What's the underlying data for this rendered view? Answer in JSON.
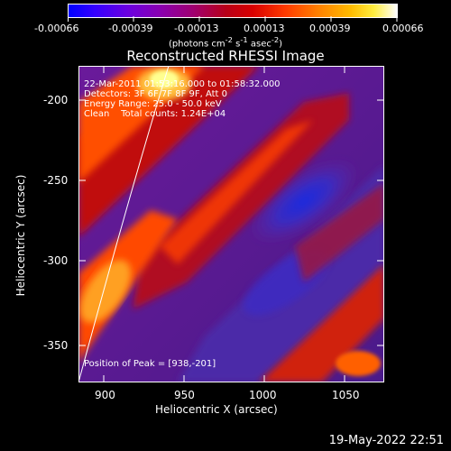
{
  "colorbar": {
    "ticks": [
      "-0.00066",
      "-0.00039",
      "-0.00013",
      "0.00013",
      "0.00039",
      "0.00066"
    ],
    "units_html": "(photons cm<sup>-2</sup> s<sup>-1</sup> asec<sup>-2</sup>)",
    "colors": [
      "#0000ff",
      "#3a00ff",
      "#7a00c8",
      "#a000a0",
      "#b00030",
      "#d00000",
      "#ff3000",
      "#ff8000",
      "#ffc000",
      "#ffff60",
      "#ffffff"
    ]
  },
  "title": "Reconstructed RHESSI Image",
  "info": {
    "line1": "22-Mar-2011 01:53:16.000 to 01:58:32.000",
    "line2": "Detectors: 3F 6F 7F 8F 9F, Att 0",
    "line3": "Energy Range: 25.0 - 50.0 keV",
    "line4": "Clean    Total counts: 1.24E+04"
  },
  "peak": "Position of Peak = [938,-201]",
  "xaxis": {
    "title": "Heliocentric X (arcsec)",
    "ticks": [
      "900",
      "950",
      "1000",
      "1050"
    ]
  },
  "yaxis": {
    "title": "Heliocentric Y (arcsec)",
    "ticks": [
      "-200",
      "-250",
      "-300",
      "-350"
    ]
  },
  "timestamp": "19-May-2022 22:51"
}
